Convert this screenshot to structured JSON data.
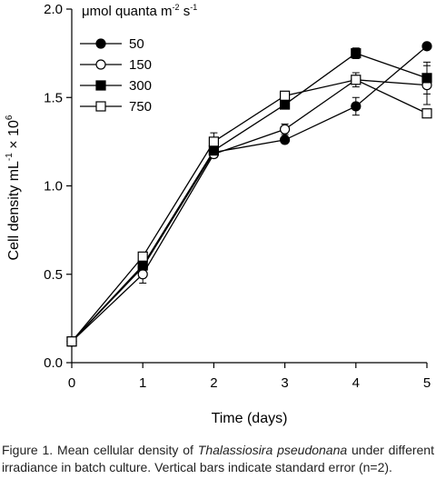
{
  "chart_data": {
    "type": "line",
    "x": [
      0,
      1,
      2,
      3,
      4,
      5
    ],
    "xlabel": "Time (days)",
    "ylabel_main": "Cell density mL",
    "ylabel_sup1": "-1",
    "ylabel_times": " × 10",
    "ylabel_sup2": "6",
    "xlim": [
      0,
      5
    ],
    "ylim": [
      0,
      2.0
    ],
    "xticks": [
      "0",
      "1",
      "2",
      "3",
      "4",
      "5"
    ],
    "yticks": [
      "0.0",
      "0.5",
      "1.0",
      "1.5",
      "2.0"
    ],
    "legend_title_main": "μmol quanta m",
    "legend_title_sup1": "-2",
    "legend_title_mid": " s",
    "legend_title_sup2": "-1",
    "legend_position": "top-left",
    "series": [
      {
        "name": "50",
        "marker": "circle-filled",
        "values": [
          0.12,
          0.54,
          1.19,
          1.26,
          1.45,
          1.79
        ],
        "errors": [
          0,
          0.02,
          0.02,
          0.01,
          0.05,
          0.01
        ]
      },
      {
        "name": "150",
        "marker": "circle-open",
        "values": [
          0.12,
          0.5,
          1.18,
          1.32,
          1.6,
          1.57
        ],
        "errors": [
          0,
          0.05,
          0.02,
          0.03,
          0.04,
          0.11
        ]
      },
      {
        "name": "300",
        "marker": "square-filled",
        "values": [
          0.12,
          0.55,
          1.2,
          1.46,
          1.75,
          1.61
        ],
        "errors": [
          0,
          0.02,
          0.03,
          0.02,
          0.03,
          0.09
        ]
      },
      {
        "name": "750",
        "marker": "square-open",
        "values": [
          0.12,
          0.6,
          1.25,
          1.51,
          1.6,
          1.41
        ],
        "errors": [
          0,
          0.02,
          0.05,
          0.01,
          0.02,
          0.02
        ]
      }
    ]
  },
  "caption": {
    "prefix": "Figure 1. Mean cellular density of ",
    "species": "Thalassiosira pseudonana",
    "suffix": " under different irradiance in batch culture. Vertical bars indicate standard error (n=2)."
  }
}
